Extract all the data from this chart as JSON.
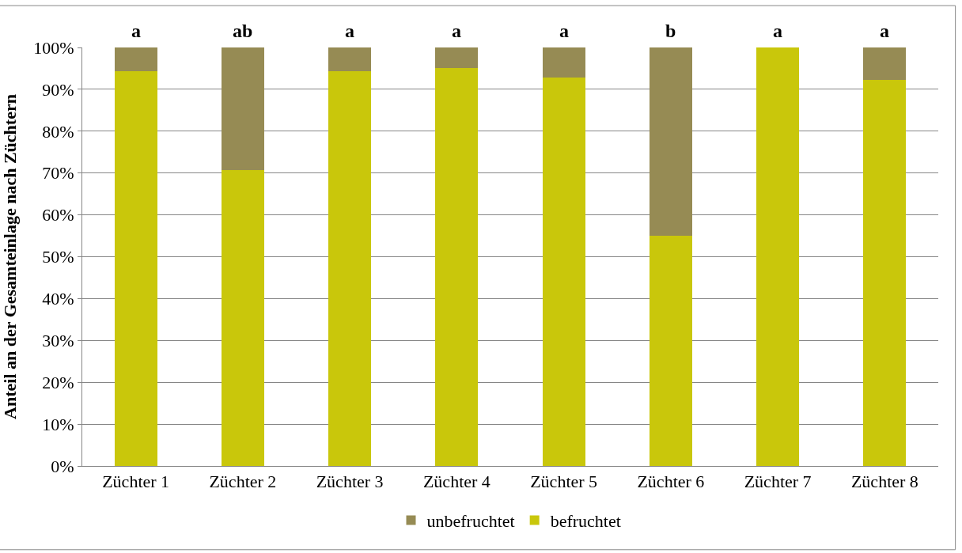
{
  "chart_data": {
    "type": "bar",
    "stacked": true,
    "ylabel": "Anteil an der Gesamteinlage nach Züchtern",
    "categories": [
      "Züchter 1",
      "Züchter 2",
      "Züchter 3",
      "Züchter 4",
      "Züchter 5",
      "Züchter 6",
      "Züchter 7",
      "Züchter 8"
    ],
    "series": [
      {
        "name": "befruchtet",
        "color": "#c9c70b",
        "values": [
          94.3,
          70.7,
          94.3,
          95,
          92.8,
          55,
          100,
          92.3
        ]
      },
      {
        "name": "unbefruchtet",
        "color": "#968b54",
        "values": [
          5.7,
          29.3,
          5.7,
          5,
          7.2,
          45,
          0,
          7.7
        ]
      }
    ],
    "ylim": [
      0,
      100
    ],
    "yticks": [
      {
        "value": 0,
        "label": "0%"
      },
      {
        "value": 10,
        "label": "10%"
      },
      {
        "value": 20,
        "label": "20%"
      },
      {
        "value": 30,
        "label": "30%"
      },
      {
        "value": 40,
        "label": "40%"
      },
      {
        "value": 50,
        "label": "50%"
      },
      {
        "value": 60,
        "label": "60%"
      },
      {
        "value": 70,
        "label": "70%"
      },
      {
        "value": 80,
        "label": "80%"
      },
      {
        "value": 90,
        "label": "90%"
      },
      {
        "value": 100,
        "label": "100%"
      }
    ],
    "annotations": [
      {
        "text": "a",
        "x": "Züchter 1",
        "y": 100
      },
      {
        "text": "ab",
        "x": "Züchter 2",
        "y": 100
      },
      {
        "text": "a",
        "x": "Züchter 3",
        "y": 100
      },
      {
        "text": "a",
        "x": "Züchter 4",
        "y": 100
      },
      {
        "text": "a",
        "x": "Züchter 5",
        "y": 100
      },
      {
        "text": "b",
        "x": "Züchter 6",
        "y": 100
      },
      {
        "text": "a",
        "x": "Züchter 7",
        "y": 100
      },
      {
        "text": "a",
        "x": "Züchter 8",
        "y": 100
      }
    ],
    "grid": "y",
    "legend": "bottom"
  }
}
